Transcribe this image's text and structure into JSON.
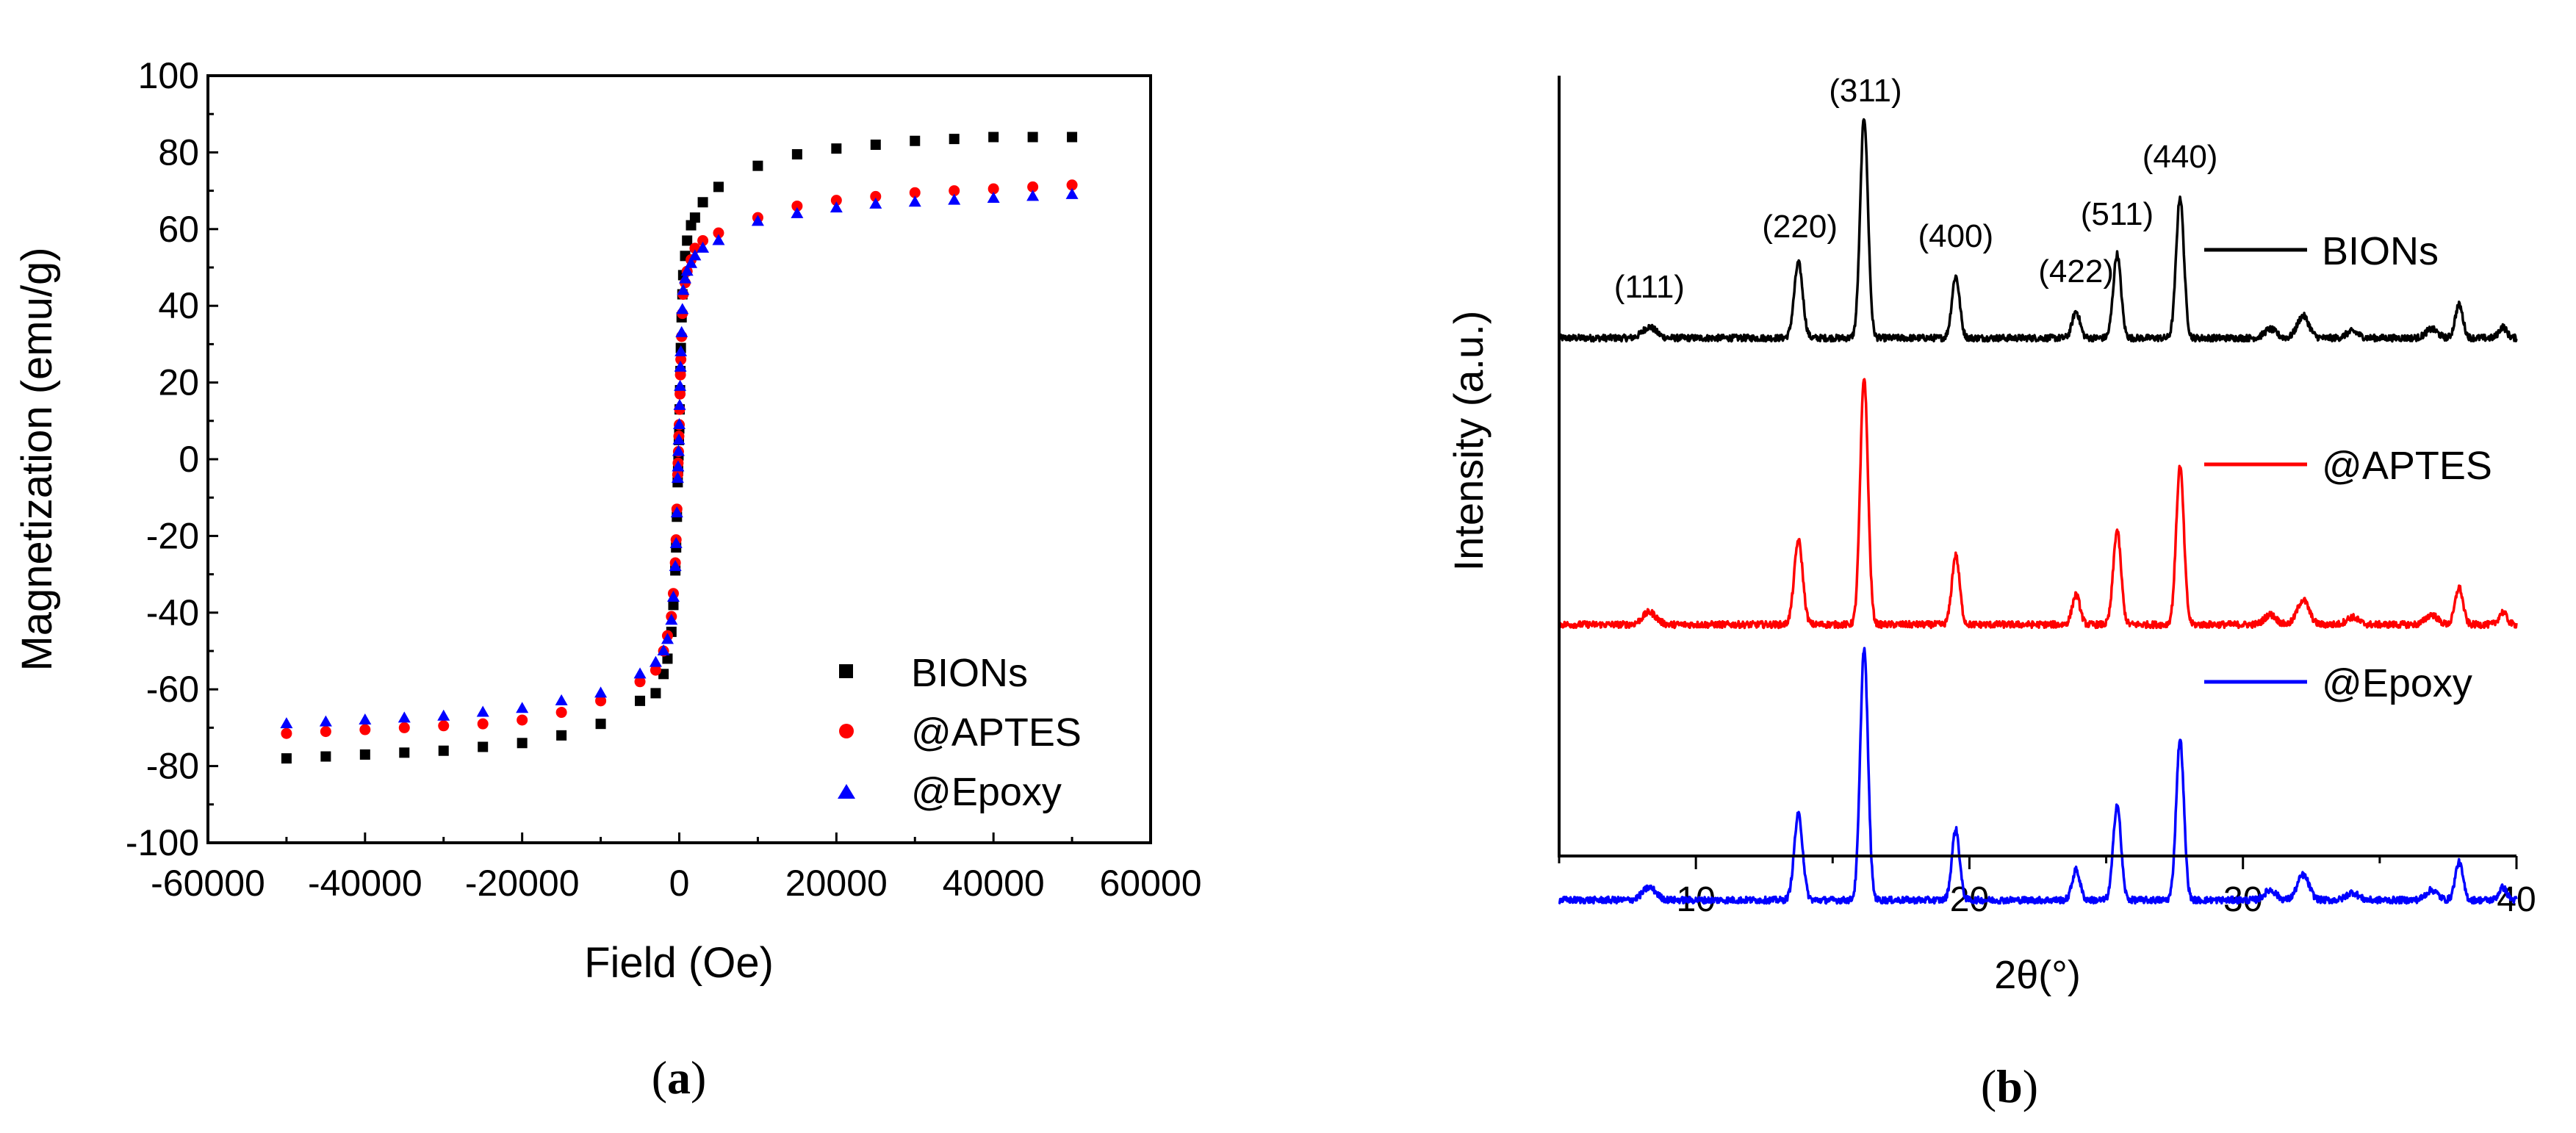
{
  "chart_data": [
    {
      "type": "scatter",
      "panel_label": "(a)",
      "panel_label_letter": "a",
      "xlabel": "Field (Oe)",
      "ylabel": "Magnetization (emu/g)",
      "xlim": [
        -60000,
        60000
      ],
      "ylim": [
        -100,
        100
      ],
      "xticks": [
        "-60000",
        "-40000",
        "-20000",
        "0",
        "20000",
        "40000",
        "60000"
      ],
      "yticks": [
        "-100",
        "-80",
        "-60",
        "-40",
        "-20",
        "0",
        "20",
        "40",
        "60",
        "80",
        "100"
      ],
      "legend_position": "lower-right",
      "series": [
        {
          "name": "BIONs",
          "color": "#000000",
          "marker": "square",
          "x": [
            -50000,
            -45000,
            -40000,
            -35000,
            -30000,
            -25000,
            -20000,
            -15000,
            -10000,
            -5000,
            -3000,
            -2000,
            -1500,
            -1000,
            -750,
            -500,
            -400,
            -300,
            -200,
            -150,
            -100,
            -50,
            0,
            50,
            100,
            150,
            200,
            300,
            400,
            500,
            750,
            1000,
            1500,
            2000,
            3000,
            5000,
            10000,
            15000,
            20000,
            25000,
            30000,
            35000,
            40000,
            45000,
            50000
          ],
          "y": [
            -78,
            -77.5,
            -77,
            -76.5,
            -76,
            -75,
            -74,
            -72,
            -69,
            -63,
            -61,
            -56,
            -52,
            -45,
            -38,
            -29,
            -23,
            -15,
            -6,
            -3,
            1,
            5,
            8,
            13,
            18,
            23,
            29,
            37,
            43,
            48,
            53,
            57,
            61,
            63,
            67,
            71,
            76.5,
            79.5,
            81,
            82,
            83,
            83.5,
            84,
            84,
            84
          ]
        },
        {
          "name": "@APTES",
          "color": "#ff0000",
          "marker": "circle",
          "x": [
            -50000,
            -45000,
            -40000,
            -35000,
            -30000,
            -25000,
            -20000,
            -15000,
            -10000,
            -5000,
            -3000,
            -2000,
            -1500,
            -1000,
            -750,
            -500,
            -400,
            -300,
            -200,
            -150,
            -100,
            -50,
            0,
            50,
            100,
            150,
            200,
            300,
            400,
            500,
            750,
            1000,
            1500,
            2000,
            3000,
            5000,
            10000,
            15000,
            20000,
            25000,
            30000,
            35000,
            40000,
            45000,
            50000
          ],
          "y": [
            -71.5,
            -71,
            -70.5,
            -70,
            -69.5,
            -69,
            -68,
            -66,
            -63,
            -58,
            -55,
            -50,
            -46,
            -41,
            -35,
            -27,
            -21,
            -13,
            -4,
            -1,
            2,
            6,
            9,
            13,
            17,
            22,
            26,
            32,
            38,
            43,
            46,
            49,
            52,
            55,
            57,
            59,
            63,
            66,
            67.5,
            68.5,
            69.5,
            70,
            70.5,
            71,
            71.5
          ]
        },
        {
          "name": "@Epoxy",
          "color": "#0000ff",
          "marker": "triangle",
          "x": [
            -50000,
            -45000,
            -40000,
            -35000,
            -30000,
            -25000,
            -20000,
            -15000,
            -10000,
            -5000,
            -3000,
            -2000,
            -1500,
            -1000,
            -750,
            -500,
            -400,
            -300,
            -200,
            -150,
            -100,
            -50,
            0,
            50,
            100,
            150,
            200,
            300,
            400,
            500,
            750,
            1000,
            1500,
            2000,
            3000,
            5000,
            10000,
            15000,
            20000,
            25000,
            30000,
            35000,
            40000,
            45000,
            50000
          ],
          "y": [
            -69,
            -68.5,
            -68,
            -67.5,
            -67,
            -66,
            -65,
            -63,
            -61,
            -56,
            -53,
            -50,
            -47,
            -42,
            -36,
            -28,
            -22,
            -14,
            -5,
            -2,
            2,
            5,
            9,
            14,
            19,
            24,
            28,
            33,
            39,
            44,
            47,
            49,
            51,
            53,
            55,
            57,
            62,
            64,
            65.5,
            66.5,
            67,
            67.5,
            68,
            68.5,
            69
          ]
        }
      ]
    },
    {
      "type": "line",
      "panel_label": "(b)",
      "panel_label_letter": "b",
      "xlabel": "2θ(°)",
      "ylabel": "Intensity (a.u.)",
      "xlim": [
        5,
        40
      ],
      "xticks": [
        "10",
        "20",
        "30",
        "40"
      ],
      "peak_labels": [
        {
          "text": "(111)",
          "x": 8.3
        },
        {
          "text": "(220)",
          "x": 13.8
        },
        {
          "text": "(311)",
          "x": 16.2
        },
        {
          "text": "(400)",
          "x": 19.5
        },
        {
          "text": "(422)",
          "x": 23.9
        },
        {
          "text": "(511)",
          "x": 25.4
        },
        {
          "text": "(440)",
          "x": 27.7
        }
      ],
      "peaks": [
        {
          "x": 8.3,
          "w": 0.35,
          "h": 0.05
        },
        {
          "x": 13.75,
          "w": 0.22,
          "h": 0.34
        },
        {
          "x": 16.15,
          "w": 0.2,
          "h": 1.0
        },
        {
          "x": 19.5,
          "w": 0.2,
          "h": 0.28
        },
        {
          "x": 23.9,
          "w": 0.2,
          "h": 0.12
        },
        {
          "x": 25.4,
          "w": 0.2,
          "h": 0.38
        },
        {
          "x": 27.7,
          "w": 0.2,
          "h": 0.64
        },
        {
          "x": 31.0,
          "w": 0.3,
          "h": 0.04
        },
        {
          "x": 32.2,
          "w": 0.3,
          "h": 0.1
        },
        {
          "x": 34.0,
          "w": 0.3,
          "h": 0.03
        },
        {
          "x": 36.9,
          "w": 0.3,
          "h": 0.04
        },
        {
          "x": 37.9,
          "w": 0.2,
          "h": 0.15
        },
        {
          "x": 39.5,
          "w": 0.2,
          "h": 0.05
        }
      ],
      "series": [
        {
          "name": "BIONs",
          "color": "#000000",
          "baseline": 0.0,
          "scale": 1.0
        },
        {
          "name": "@APTES",
          "color": "#ff0000",
          "baseline": -1.3,
          "scale": 1.12
        },
        {
          "name": "@Epoxy",
          "color": "#0000ff",
          "baseline": -2.55,
          "scale": 1.14
        }
      ]
    }
  ]
}
